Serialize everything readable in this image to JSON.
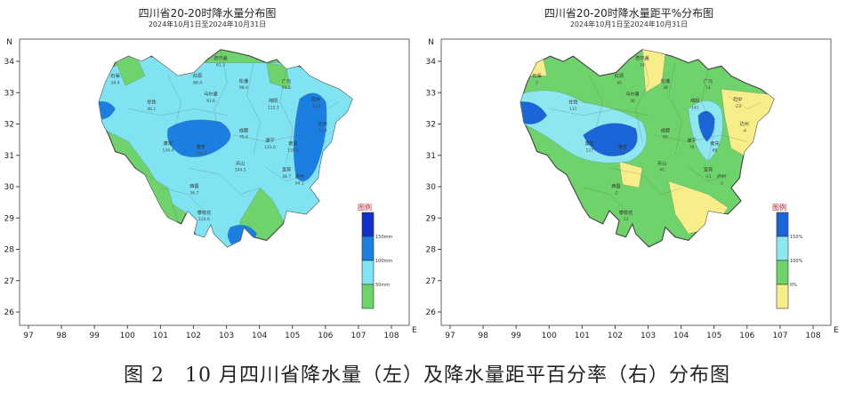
{
  "left": {
    "title": "四川省20-20时降水量分布图",
    "subtitle": "2024年10月1日至2024年10月31日",
    "legend_title": "图例",
    "legend_items": [
      {
        "label": "150mm",
        "color": "#1030c8"
      },
      {
        "label": "100mm",
        "color": "#1a7fe0"
      },
      {
        "label": "50mm",
        "color": "#7fe3f2"
      },
      {
        "label": "",
        "color": "#6ed36a"
      }
    ],
    "stations": [
      {
        "name": "石渠",
        "value": "34.4"
      },
      {
        "name": "若尔盖",
        "value": "61.3"
      },
      {
        "name": "红原",
        "value": "88.4"
      },
      {
        "name": "松潘",
        "value": "98.4"
      },
      {
        "name": "马尔康",
        "value": "91.6"
      },
      {
        "name": "广元",
        "value": "64.5"
      },
      {
        "name": "甘孜",
        "value": "46.1"
      },
      {
        "name": "康定",
        "value": "134.4"
      },
      {
        "name": "雅安",
        "value": "126.6"
      },
      {
        "name": "成都",
        "value": "79.4"
      },
      {
        "name": "绵阳",
        "value": "112.3"
      },
      {
        "name": "巴中",
        "value": "33.5"
      },
      {
        "name": "达州",
        "value": "71.9"
      },
      {
        "name": "南充",
        "value": "130.5"
      },
      {
        "name": "遂宁",
        "value": "123.0"
      },
      {
        "name": "乐山",
        "value": "144.5"
      },
      {
        "name": "宜宾",
        "value": "38.7"
      },
      {
        "name": "泸州",
        "value": "64.1"
      },
      {
        "name": "西昌",
        "value": "56.7"
      },
      {
        "name": "攀枝花",
        "value": "124.6"
      }
    ]
  },
  "right": {
    "title": "四川省20-20时降水量距平%分布图",
    "subtitle": "2024年10月1日至2024年10月31日",
    "legend_title": "图例",
    "legend_items": [
      {
        "label": "150%",
        "color": "#1a66d8"
      },
      {
        "label": "100%",
        "color": "#8ee6ef"
      },
      {
        "label": "0%",
        "color": "#6ed36a"
      },
      {
        "label": "",
        "color": "#f7ee8a"
      }
    ],
    "stations": [
      {
        "name": "石渠",
        "value": "2"
      },
      {
        "name": "若尔盖",
        "value": "14"
      },
      {
        "name": "红原",
        "value": "40"
      },
      {
        "name": "松潘",
        "value": "38"
      },
      {
        "name": "马尔康",
        "value": "30"
      },
      {
        "name": "广元",
        "value": "14"
      },
      {
        "name": "甘孜",
        "value": "115"
      },
      {
        "name": "康定",
        "value": "127"
      },
      {
        "name": "雅安",
        "value": "42"
      },
      {
        "name": "成都",
        "value": "65"
      },
      {
        "name": "绵阳",
        "value": "141"
      },
      {
        "name": "巴中",
        "value": "-23"
      },
      {
        "name": "达州",
        "value": "-4"
      },
      {
        "name": "南充",
        "value": "68"
      },
      {
        "name": "遂宁",
        "value": "78"
      },
      {
        "name": "乐山",
        "value": "41"
      },
      {
        "name": "宜宾",
        "value": "-21"
      },
      {
        "name": "泸州",
        "value": "-3"
      },
      {
        "name": "西昌",
        "value": "-2"
      },
      {
        "name": "攀枝花",
        "value": "13"
      }
    ]
  },
  "axes": {
    "lon_ticks": [
      "97",
      "98",
      "99",
      "100",
      "101",
      "102",
      "103",
      "104",
      "105",
      "106",
      "107",
      "108"
    ],
    "lat_ticks": [
      "34",
      "33",
      "32",
      "31",
      "30",
      "29",
      "28",
      "27",
      "26"
    ],
    "north_label": "N",
    "east_label": "E"
  },
  "caption": "图 2　10 月四川省降水量（左）及降水量距平百分率（右）分布图"
}
